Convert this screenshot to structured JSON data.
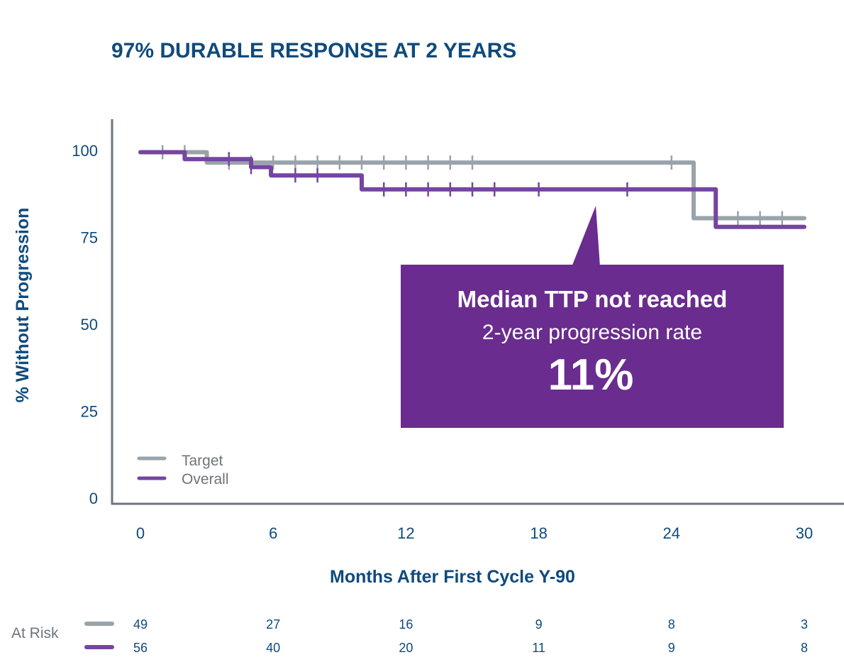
{
  "chart_data": {
    "type": "line",
    "subtype": "kaplan-meier-step",
    "title": "97% DURABLE RESPONSE AT 2 YEARS",
    "xlabel": "Months After First Cycle Y-90",
    "ylabel": "% Without Progression",
    "xlim": [
      0,
      30
    ],
    "ylim": [
      0,
      100
    ],
    "xticks": [
      "0",
      "6",
      "12",
      "18",
      "24",
      "30"
    ],
    "yticks": [
      "0",
      "25",
      "50",
      "75",
      "100"
    ],
    "grid": false,
    "legend_position": "bottom-left",
    "series": [
      {
        "name": "Target",
        "color": "#99a3aa",
        "steps": [
          [
            0,
            99.5
          ],
          [
            3,
            96.5
          ],
          [
            25,
            80.5
          ],
          [
            30,
            80.5
          ]
        ],
        "censored": [
          1,
          2,
          4,
          5,
          6,
          7,
          8,
          9,
          10,
          11,
          12,
          13,
          14,
          15,
          24,
          27,
          28,
          29
        ]
      },
      {
        "name": "Overall",
        "color": "#7545a0",
        "steps": [
          [
            0,
            99.5
          ],
          [
            2,
            97.5
          ],
          [
            5,
            95.2
          ],
          [
            5.9,
            92.8
          ],
          [
            10,
            88.8
          ],
          [
            26,
            78
          ],
          [
            30,
            78
          ]
        ],
        "censored": [
          4,
          5,
          7,
          8,
          11,
          12,
          13,
          14,
          15,
          16,
          18,
          22
        ]
      }
    ],
    "annotation": {
      "line1": "Median TTP not reached",
      "line2": "2-year progression rate",
      "line3": "11%",
      "color": "#6a2c8e"
    },
    "at_risk": {
      "label": "At Risk",
      "months": [
        0,
        6,
        12,
        18,
        24,
        30
      ],
      "rows": [
        {
          "series": "Target",
          "values": [
            "49",
            "27",
            "16",
            "9",
            "8",
            "3"
          ]
        },
        {
          "series": "Overall",
          "values": [
            "56",
            "40",
            "20",
            "11",
            "9",
            "8"
          ]
        }
      ]
    }
  }
}
